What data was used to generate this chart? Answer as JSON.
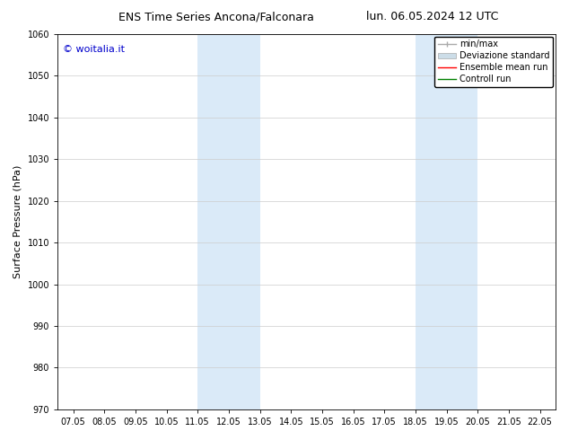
{
  "title_left": "ENS Time Series Ancona/Falconara",
  "title_right": "lun. 06.05.2024 12 UTC",
  "ylabel": "Surface Pressure (hPa)",
  "background_color": "#ffffff",
  "plot_background": "#ffffff",
  "ylim": [
    970,
    1060
  ],
  "yticks": [
    970,
    980,
    990,
    1000,
    1010,
    1020,
    1030,
    1040,
    1050,
    1060
  ],
  "xtick_labels": [
    "07.05",
    "08.05",
    "09.05",
    "10.05",
    "11.05",
    "12.05",
    "13.05",
    "14.05",
    "15.05",
    "16.05",
    "17.05",
    "18.05",
    "19.05",
    "20.05",
    "21.05",
    "22.05"
  ],
  "xtick_positions": [
    0,
    1,
    2,
    3,
    4,
    5,
    6,
    7,
    8,
    9,
    10,
    11,
    12,
    13,
    14,
    15
  ],
  "xlim": [
    -0.5,
    15.5
  ],
  "shaded_bands": [
    {
      "x_start": 4.0,
      "x_end": 6.0,
      "color": "#daeaf8"
    },
    {
      "x_start": 11.0,
      "x_end": 13.0,
      "color": "#daeaf8"
    }
  ],
  "watermark_text": "© woitalia.it",
  "watermark_color": "#0000cc",
  "watermark_fontsize": 8,
  "legend_entries": [
    {
      "label": "min/max",
      "color": "#aaaaaa",
      "type": "errorbar"
    },
    {
      "label": "Deviazione standard",
      "color": "#ccdde8",
      "type": "patch"
    },
    {
      "label": "Ensemble mean run",
      "color": "#ff0000",
      "type": "line"
    },
    {
      "label": "Controll run",
      "color": "#008000",
      "type": "line"
    }
  ],
  "title_fontsize": 9,
  "tick_fontsize": 7,
  "ylabel_fontsize": 8,
  "legend_fontsize": 7,
  "grid_color": "#cccccc",
  "grid_lw": 0.5
}
